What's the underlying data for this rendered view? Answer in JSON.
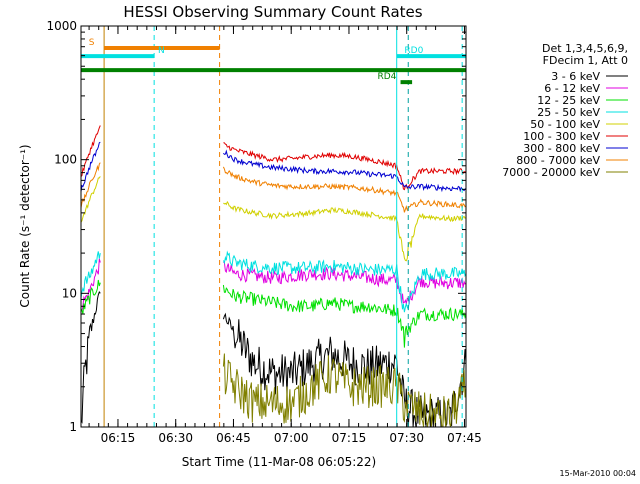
{
  "chart_data": {
    "type": "line",
    "title": "HESSI Observing Summary Count Rates",
    "xlabel": "Start Time (11-Mar-08 06:05:22)",
    "ylabel": "Count Rate (s⁻¹ detector⁻¹)",
    "yscale": "log",
    "x_unit": "minutes after 06:05:22",
    "xlim": [
      0,
      100
    ],
    "ylim": [
      1,
      1000
    ],
    "xtick_labels": [
      {
        "x": 9.6,
        "label": "06:15"
      },
      {
        "x": 24.6,
        "label": "06:30"
      },
      {
        "x": 39.6,
        "label": "06:45"
      },
      {
        "x": 54.6,
        "label": "07:00"
      },
      {
        "x": 69.6,
        "label": "07:15"
      },
      {
        "x": 84.6,
        "label": "07:30"
      },
      {
        "x": 99.6,
        "label": "07:45"
      }
    ],
    "ytick_labels": [
      {
        "y": 1,
        "label": "1"
      },
      {
        "y": 10,
        "label": "10"
      },
      {
        "y": 100,
        "label": "100"
      },
      {
        "y": 1000,
        "label": "1000"
      }
    ],
    "legend": {
      "placement": "right",
      "header": [
        "Det 1,3,4,5,6,9,",
        "FDecim 1, Att 0"
      ]
    },
    "series": [
      {
        "name": "3 - 6 keV",
        "color": "#000000",
        "segments": [
          {
            "x": [
              0,
              1,
              2,
              3,
              4,
              5
            ],
            "y": [
              1,
              2.5,
              4,
              6,
              8,
              10
            ]
          },
          {
            "x": [
              37,
              40,
              45,
              50,
              55,
              60,
              65,
              70,
              75,
              80,
              82,
              84,
              88,
              92,
              96,
              100
            ],
            "y": [
              7,
              5,
              3,
              2.5,
              2.5,
              3,
              3.5,
              3,
              2.8,
              3,
              3,
              1.5,
              1.2,
              1.2,
              1.2,
              3
            ]
          }
        ]
      },
      {
        "name": "6 - 12 keV",
        "color": "#e000e0",
        "segments": [
          {
            "x": [
              0,
              1,
              2,
              3,
              4,
              5
            ],
            "y": [
              8,
              9,
              10,
              12,
              14,
              17
            ]
          },
          {
            "x": [
              37,
              40,
              45,
              50,
              55,
              60,
              65,
              70,
              75,
              80,
              82,
              84,
              88,
              92,
              96,
              100
            ],
            "y": [
              16,
              14,
              13.5,
              13,
              13.5,
              14,
              14,
              13.5,
              13,
              12.5,
              12.5,
              8,
              12.5,
              12,
              12,
              12
            ]
          }
        ]
      },
      {
        "name": "12 - 25 keV",
        "color": "#00e000",
        "segments": [
          {
            "x": [
              0,
              1,
              2,
              3,
              4,
              5
            ],
            "y": [
              7,
              8,
              9,
              10,
              11,
              12
            ]
          },
          {
            "x": [
              37,
              40,
              45,
              50,
              55,
              60,
              65,
              70,
              75,
              80,
              82,
              84,
              88,
              92,
              96,
              100
            ],
            "y": [
              11,
              9.5,
              9,
              8.5,
              8,
              8,
              8.5,
              8,
              8,
              7.5,
              7.5,
              5,
              7,
              7,
              7,
              7
            ]
          }
        ]
      },
      {
        "name": "25 - 50 keV",
        "color": "#00e0e0",
        "segments": [
          {
            "x": [
              0,
              1,
              2,
              3,
              4,
              5
            ],
            "y": [
              10,
              12,
              13,
              15,
              18,
              20
            ]
          },
          {
            "x": [
              37,
              40,
              45,
              50,
              55,
              60,
              65,
              70,
              75,
              80,
              82,
              84,
              88,
              92,
              96,
              100
            ],
            "y": [
              19,
              17,
              16,
              15.5,
              15.5,
              15.5,
              16,
              15.5,
              15,
              15,
              15,
              7,
              14,
              14,
              14,
              14
            ]
          }
        ]
      },
      {
        "name": "50 - 100 keV",
        "color": "#d0d000",
        "segments": [
          {
            "x": [
              0,
              1,
              2,
              3,
              4,
              5
            ],
            "y": [
              35,
              40,
              48,
              56,
              65,
              75
            ]
          },
          {
            "x": [
              37,
              40,
              45,
              50,
              55,
              60,
              65,
              70,
              75,
              80,
              82,
              84,
              88,
              92,
              96,
              100
            ],
            "y": [
              48,
              43,
              40,
              38,
              39,
              40,
              42,
              41,
              39,
              37,
              36,
              17,
              38,
              37,
              36,
              37
            ]
          }
        ]
      },
      {
        "name": "100 - 300 keV",
        "color": "#e00000",
        "segments": [
          {
            "x": [
              0,
              1,
              2,
              3,
              4,
              5
            ],
            "y": [
              75,
              90,
              110,
              130,
              150,
              180
            ]
          },
          {
            "x": [
              37,
              40,
              45,
              50,
              55,
              60,
              65,
              70,
              75,
              80,
              82,
              84,
              88,
              92,
              96,
              100
            ],
            "y": [
              130,
              118,
              108,
              100,
              102,
              106,
              108,
              106,
              100,
              93,
              90,
              60,
              82,
              82,
              82,
              82
            ]
          }
        ]
      },
      {
        "name": "300 - 800 keV",
        "color": "#0000d0",
        "segments": [
          {
            "x": [
              0,
              1,
              2,
              3,
              4,
              5
            ],
            "y": [
              60,
              70,
              85,
              100,
              115,
              135
            ]
          },
          {
            "x": [
              37,
              40,
              45,
              50,
              55,
              60,
              65,
              70,
              75,
              80,
              82,
              84,
              88,
              92,
              96,
              100
            ],
            "y": [
              115,
              100,
              92,
              87,
              85,
              82,
              82,
              81,
              78,
              76,
              75,
              62,
              63,
              62,
              61,
              61
            ]
          }
        ]
      },
      {
        "name": "800 - 7000 keV",
        "color": "#f08000",
        "segments": [
          {
            "x": [
              0,
              1,
              2,
              3,
              4,
              5
            ],
            "y": [
              45,
              52,
              62,
              72,
              82,
              95
            ]
          },
          {
            "x": [
              37,
              40,
              45,
              50,
              55,
              60,
              65,
              70,
              75,
              80,
              82,
              84,
              88,
              92,
              96,
              100
            ],
            "y": [
              85,
              75,
              68,
              64,
              63,
              63,
              63,
              62,
              60,
              57,
              56,
              42,
              48,
              47,
              46,
              45
            ]
          }
        ]
      },
      {
        "name": "7000 - 20000 keV",
        "color": "#808000",
        "segments": [
          {
            "x": [
              37,
              40,
              45,
              50,
              55,
              60,
              65,
              70,
              75,
              80,
              82,
              84,
              88,
              92,
              96,
              100
            ],
            "y": [
              2.5,
              2,
              1.5,
              1.5,
              1.5,
              2,
              2.5,
              2,
              2,
              2,
              2,
              1.5,
              1.3,
              1.2,
              1.2,
              2
            ]
          }
        ]
      }
    ],
    "vertical_markers": [
      {
        "x": 0,
        "color": "#00e0e0",
        "style": "solid"
      },
      {
        "x": 6,
        "color": "#c08000",
        "style": "solid"
      },
      {
        "x": 19,
        "color": "#00e0e0",
        "style": "dashed"
      },
      {
        "x": 36,
        "color": "#f08000",
        "style": "dashed"
      },
      {
        "x": 82,
        "color": "#00e0e0",
        "style": "solid"
      },
      {
        "x": 85,
        "color": "#00a0a0",
        "style": "dashed"
      },
      {
        "x": 99,
        "color": "#00e0e0",
        "style": "dashed"
      }
    ],
    "flag_bars": [
      {
        "label": "S",
        "color": "#f08000",
        "x0": 6,
        "x1": 36,
        "y_frac": 0.055,
        "label_x": 2
      },
      {
        "label": "N",
        "color": "#00e0e0",
        "x0": 0,
        "x1": 19,
        "y_frac": 0.075,
        "label_x": 20
      },
      {
        "label": "",
        "color": "#008000",
        "x0": 0,
        "x1": 100,
        "y_frac": 0.11
      },
      {
        "label": "RD0",
        "color": "#00e0e0",
        "x0": 82,
        "x1": 100,
        "y_frac": 0.075,
        "label_x": 84
      },
      {
        "label": "RD4",
        "color": "#008000",
        "x0": 83,
        "x1": 86,
        "y_frac": 0.14,
        "label_x": 77
      }
    ],
    "footer": "15-Mar-2010 00:04"
  }
}
